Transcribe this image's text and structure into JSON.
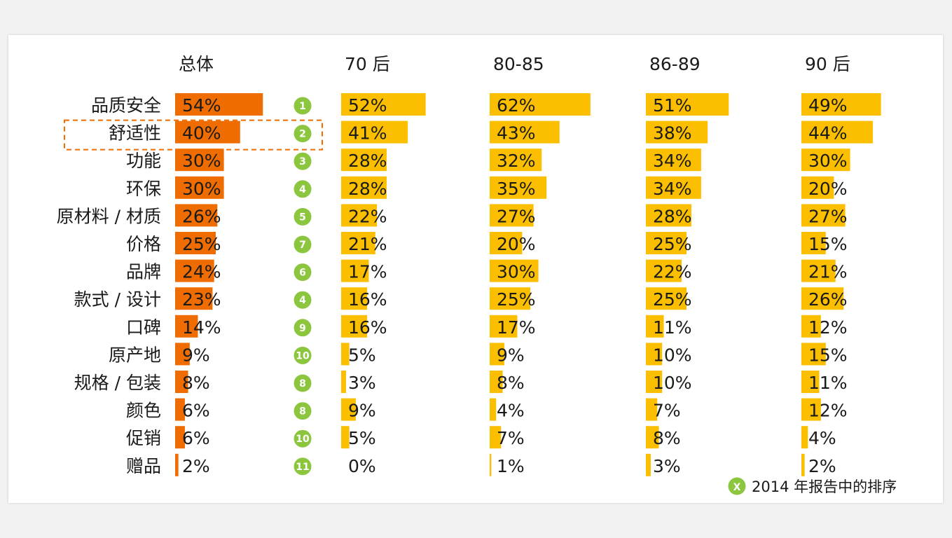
{
  "chart_data": {
    "type": "bar",
    "columns": [
      "总体",
      "70 后",
      "80-85",
      "86-89",
      "90 后"
    ],
    "categories": [
      "品质安全",
      "舒适性",
      "功能",
      "环保",
      "原材料 / 材质",
      "价格",
      "品牌",
      "款式 / 设计",
      "口碑",
      "原产地",
      "规格 / 包装",
      "颜色",
      "促销",
      "赠品"
    ],
    "ranks_2014": [
      "1",
      "2",
      "3",
      "4",
      "5",
      "7",
      "6",
      "4",
      "9",
      "10",
      "8",
      "8",
      "10",
      "11"
    ],
    "series": [
      {
        "values": [
          54,
          40,
          30,
          30,
          26,
          25,
          24,
          23,
          14,
          9,
          8,
          6,
          6,
          2
        ]
      },
      {
        "values": [
          52,
          41,
          28,
          28,
          22,
          21,
          17,
          16,
          16,
          5,
          3,
          9,
          5,
          0
        ]
      },
      {
        "values": [
          62,
          43,
          32,
          35,
          27,
          20,
          30,
          25,
          17,
          9,
          8,
          4,
          7,
          1
        ]
      },
      {
        "values": [
          51,
          38,
          34,
          34,
          28,
          25,
          22,
          25,
          11,
          10,
          10,
          7,
          8,
          3
        ]
      },
      {
        "values": [
          49,
          44,
          30,
          20,
          27,
          15,
          21,
          26,
          12,
          15,
          11,
          12,
          4,
          2
        ]
      }
    ],
    "value_suffix": "%",
    "highlight_category": "舒适性",
    "legend": {
      "symbol": "X",
      "text": "2014 年报告中的排序",
      "position": "bottom-right"
    },
    "colors": {
      "overall": "#ee6c00",
      "segments": "#fcbf00",
      "rank": "#8cc63f",
      "highlight_border": "#ee6c00"
    }
  }
}
